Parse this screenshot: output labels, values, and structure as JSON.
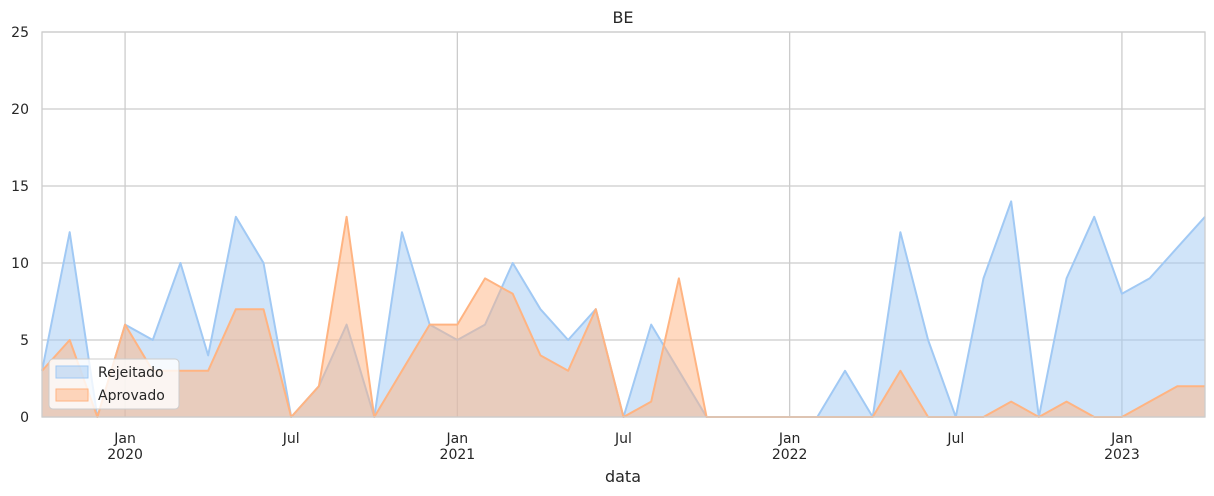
{
  "chart_data": {
    "type": "area",
    "title": "BE",
    "xlabel": "data",
    "ylabel": "",
    "ylim": [
      0,
      25
    ],
    "yticks": [
      0,
      5,
      10,
      15,
      20,
      25
    ],
    "xlim": [
      "2019-10",
      "2023-04"
    ],
    "grid": true,
    "legend_position": "lower-left",
    "x_ticks": [
      {
        "date": "2020-01",
        "label": "Jan",
        "sub": "2020",
        "major": true
      },
      {
        "date": "2020-07",
        "label": "Jul",
        "sub": "",
        "major": false
      },
      {
        "date": "2021-01",
        "label": "Jan",
        "sub": "2021",
        "major": true
      },
      {
        "date": "2021-07",
        "label": "Jul",
        "sub": "",
        "major": false
      },
      {
        "date": "2022-01",
        "label": "Jan",
        "sub": "2022",
        "major": true
      },
      {
        "date": "2022-07",
        "label": "Jul",
        "sub": "",
        "major": false
      },
      {
        "date": "2023-01",
        "label": "Jan",
        "sub": "2023",
        "major": true
      }
    ],
    "x": [
      "2019-10",
      "2019-11",
      "2019-12",
      "2020-01",
      "2020-02",
      "2020-03",
      "2020-04",
      "2020-05",
      "2020-06",
      "2020-07",
      "2020-08",
      "2020-09",
      "2020-10",
      "2020-11",
      "2020-12",
      "2021-01",
      "2021-02",
      "2021-03",
      "2021-04",
      "2021-05",
      "2021-06",
      "2021-07",
      "2021-08",
      "2021-09",
      "2021-10",
      "2021-11",
      "2021-12",
      "2022-01",
      "2022-02",
      "2022-03",
      "2022-04",
      "2022-05",
      "2022-06",
      "2022-07",
      "2022-08",
      "2022-09",
      "2022-10",
      "2022-11",
      "2022-12",
      "2023-01",
      "2023-02",
      "2023-03",
      "2023-04"
    ],
    "series": [
      {
        "name": "Rejeitado",
        "color": "#a1c9f4",
        "values": [
          3,
          12,
          0,
          6,
          5,
          10,
          4,
          13,
          10,
          0,
          2,
          6,
          0,
          12,
          6,
          5,
          6,
          10,
          7,
          5,
          7,
          0,
          6,
          3,
          0,
          0,
          0,
          0,
          0,
          3,
          0,
          12,
          5,
          0,
          9,
          14,
          0,
          9,
          13,
          8,
          9,
          11,
          13
        ]
      },
      {
        "name": "Aprovado",
        "color": "#ffb482",
        "values": [
          3,
          5,
          0,
          6,
          3,
          3,
          3,
          7,
          7,
          0,
          2,
          13,
          0,
          3,
          6,
          6,
          9,
          8,
          4,
          3,
          7,
          0,
          1,
          9,
          0,
          0,
          0,
          0,
          0,
          0,
          0,
          3,
          0,
          0,
          0,
          1,
          0,
          1,
          0,
          0,
          1,
          2,
          2
        ]
      }
    ]
  }
}
